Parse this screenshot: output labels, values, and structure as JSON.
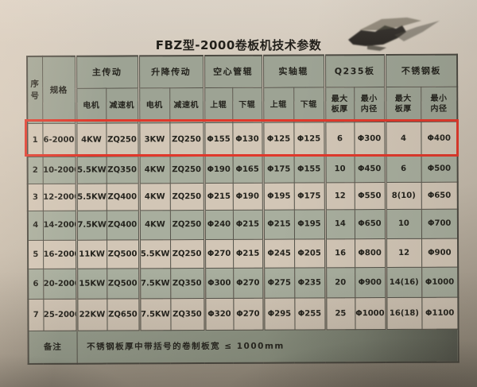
{
  "title": "FBZ型-2000卷板机技术参数",
  "table": {
    "corner_headers": [
      "序号",
      "规格"
    ],
    "groups": [
      {
        "label": "主传动",
        "subs": [
          "电机",
          "减速机"
        ]
      },
      {
        "label": "升降传动",
        "subs": [
          "电机",
          "减速机"
        ]
      },
      {
        "label": "空心管辊",
        "subs": [
          "上辊",
          "下辊"
        ]
      },
      {
        "label": "实轴辊",
        "subs": [
          "上辊",
          "下辊"
        ]
      },
      {
        "label": "Q235板",
        "subs": [
          "最大\n板厚",
          "最小\n内径"
        ]
      },
      {
        "label": "不锈钢板",
        "subs": [
          "最大\n板厚",
          "最小\n内径"
        ]
      }
    ],
    "rows": [
      [
        "1",
        "6-2000",
        "4KW",
        "ZQ250",
        "3KW",
        "ZQ250",
        "Φ155",
        "Φ130",
        "Φ125",
        "Φ125",
        "6",
        "Φ300",
        "4",
        "Φ400"
      ],
      [
        "2",
        "10-2000",
        "5.5KW",
        "ZQ350",
        "4KW",
        "ZQ250",
        "Φ190",
        "Φ165",
        "Φ175",
        "Φ155",
        "10",
        "Φ450",
        "6",
        "Φ500"
      ],
      [
        "3",
        "12-2000",
        "5.5KW",
        "ZQ400",
        "4KW",
        "ZQ250",
        "Φ215",
        "Φ190",
        "Φ195",
        "Φ175",
        "12",
        "Φ550",
        "8(10)",
        "Φ650"
      ],
      [
        "4",
        "14-2000",
        "7.5KW",
        "ZQ400",
        "4KW",
        "ZQ250",
        "Φ240",
        "Φ215",
        "Φ215",
        "Φ195",
        "14",
        "Φ650",
        "10",
        "Φ700"
      ],
      [
        "5",
        "16-2000",
        "11KW",
        "ZQ500",
        "5.5KW",
        "ZQ250",
        "Φ270",
        "Φ215",
        "Φ245",
        "Φ205",
        "16",
        "Φ800",
        "12",
        "Φ900"
      ],
      [
        "6",
        "20-2000",
        "15KW",
        "ZQ500",
        "7.5KW",
        "ZQ350",
        "Φ300",
        "Φ270",
        "Φ275",
        "Φ235",
        "20",
        "Φ900",
        "14(16)",
        "Φ1000"
      ],
      [
        "7",
        "25-2000",
        "22KW",
        "ZQ650",
        "7.5KW",
        "ZQ350",
        "Φ320",
        "Φ270",
        "Φ295",
        "Φ255",
        "25",
        "Φ1000",
        "16(18)",
        "Φ1100"
      ]
    ],
    "highlighted_row_index": 0,
    "footer_label": "备注",
    "footer_note": "不锈钢板厚中带括号的卷制板宽 ≤ 1000mm"
  },
  "colors": {
    "highlight_box": "#e0382b",
    "header_bg": "#9da394",
    "row_light": "#d2c6b6",
    "row_dark": "#a8ae9e",
    "footer_bg": "#99a090",
    "table_line": "#56544b",
    "ink_smudge": "#2e2b26"
  }
}
